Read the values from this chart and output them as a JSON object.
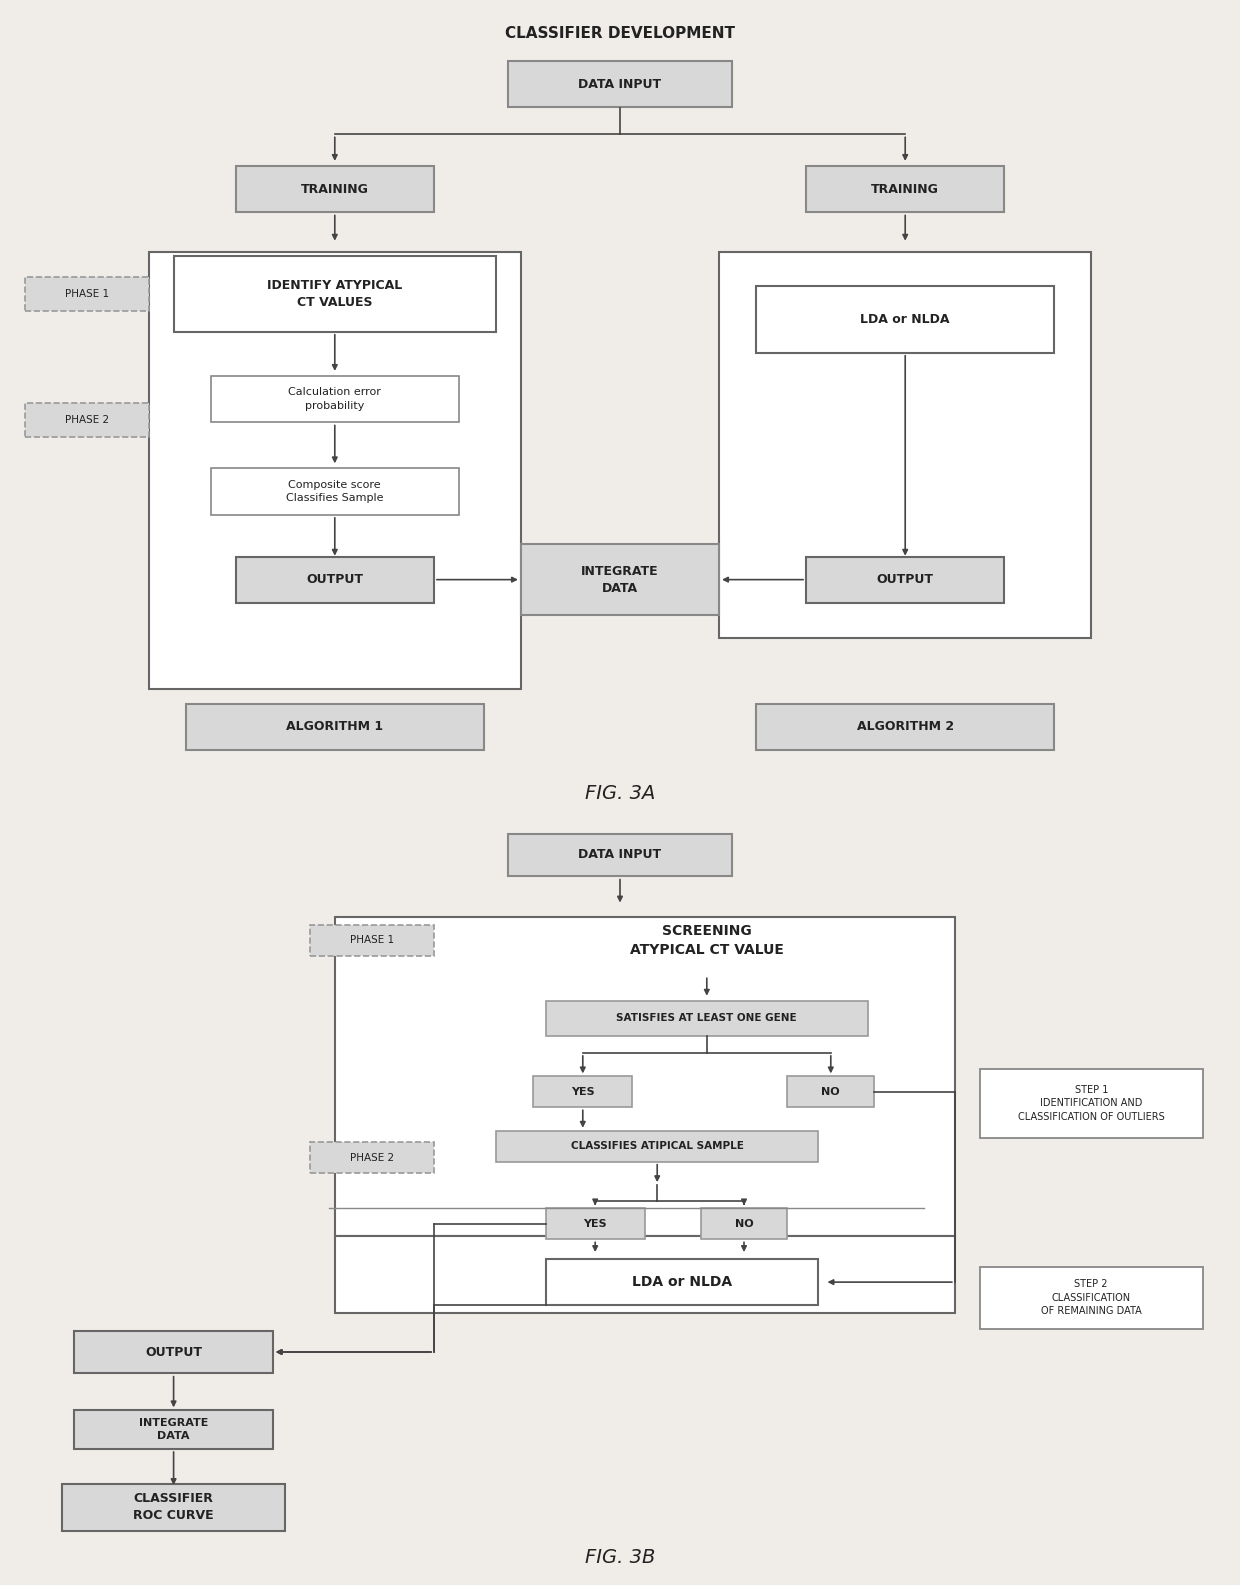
{
  "fig_width": 12.4,
  "fig_height": 15.85,
  "bg_color": "#f0ede8",
  "title_3a": "CLASSIFIER DEVELOPMENT",
  "caption_3a": "FIG. 3A",
  "caption_3b": "FIG. 3B"
}
